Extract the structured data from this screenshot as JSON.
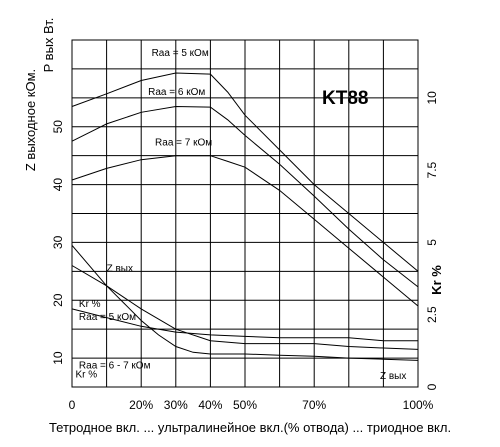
{
  "chart_data": {
    "type": "line",
    "model_label": "KT88",
    "left_axis_title_1": "Z выходное кОм.",
    "left_axis_title_2": "P вых Вт.",
    "right_axis_title": "Kr %",
    "x_axis_title": "Тетродное вкл. ... ультралинейное вкл.(% отвода) ... триодное вкл.",
    "x_ticks": [
      {
        "value": 0,
        "label": "0"
      },
      {
        "value": 20,
        "label": "20%"
      },
      {
        "value": 30,
        "label": "30%"
      },
      {
        "value": 40,
        "label": "40%"
      },
      {
        "value": 50,
        "label": "50%"
      },
      {
        "value": 70,
        "label": "70%"
      },
      {
        "value": 100,
        "label": "100%"
      }
    ],
    "xlim": [
      0,
      100
    ],
    "ylim": [
      5,
      65
    ],
    "y_ticks": [
      10,
      20,
      30,
      40,
      50
    ],
    "y2lim": [
      0,
      12
    ],
    "y2_ticks": [
      {
        "value": 0,
        "label": "0"
      },
      {
        "value": 2.5,
        "label": "2.5"
      },
      {
        "value": 5,
        "label": "5"
      },
      {
        "value": 7.5,
        "label": "7.5"
      },
      {
        "value": 10,
        "label": "10"
      }
    ],
    "grid": true,
    "series": [
      {
        "name": "Raa = 5 кОм",
        "axis": "left",
        "points": [
          [
            0,
            53.5
          ],
          [
            10,
            55.7
          ],
          [
            20,
            58
          ],
          [
            30,
            59.3
          ],
          [
            40,
            59.1
          ],
          [
            45,
            56
          ],
          [
            50,
            52
          ],
          [
            60,
            46
          ],
          [
            70,
            40
          ],
          [
            80,
            35
          ],
          [
            90,
            30
          ],
          [
            100,
            25
          ]
        ]
      },
      {
        "name": "Raa = 6 кОм",
        "axis": "left",
        "points": [
          [
            0,
            47.5
          ],
          [
            10,
            50.5
          ],
          [
            20,
            52.5
          ],
          [
            30,
            53.5
          ],
          [
            40,
            53.4
          ],
          [
            45,
            51.2
          ],
          [
            50,
            48.5
          ],
          [
            60,
            43.5
          ],
          [
            70,
            38
          ],
          [
            80,
            32.3
          ],
          [
            90,
            27
          ],
          [
            100,
            22.3
          ]
        ]
      },
      {
        "name": "Raa = 7 кОм",
        "axis": "left",
        "points": [
          [
            0,
            40.8
          ],
          [
            10,
            42.8
          ],
          [
            20,
            44.3
          ],
          [
            30,
            45
          ],
          [
            40,
            45
          ],
          [
            45,
            44
          ],
          [
            50,
            43
          ],
          [
            60,
            39
          ],
          [
            70,
            34
          ],
          [
            80,
            29
          ],
          [
            90,
            24
          ],
          [
            100,
            19
          ]
        ]
      },
      {
        "name": "Z вых",
        "axis": "left",
        "points": [
          [
            0,
            29.5
          ],
          [
            5,
            26
          ],
          [
            10,
            22.5
          ],
          [
            15,
            19.5
          ],
          [
            20,
            16.5
          ],
          [
            25,
            14
          ],
          [
            30,
            12
          ],
          [
            35,
            11
          ],
          [
            40,
            10.7
          ],
          [
            50,
            10.7
          ],
          [
            60,
            10.5
          ],
          [
            70,
            10.3
          ],
          [
            80,
            10
          ],
          [
            90,
            9.8
          ],
          [
            100,
            9.6
          ]
        ]
      },
      {
        "name": "Kr % Raa = 5 кОм",
        "axis": "right",
        "points": [
          [
            0,
            4.2
          ],
          [
            10,
            3.5
          ],
          [
            20,
            2.7
          ],
          [
            30,
            2.0
          ],
          [
            40,
            1.6
          ],
          [
            50,
            1.5
          ],
          [
            60,
            1.5
          ],
          [
            70,
            1.5
          ],
          [
            80,
            1.4
          ],
          [
            90,
            1.35
          ],
          [
            100,
            1.3
          ]
        ]
      },
      {
        "name": "Kr % Raa = 6 - 7 кОм",
        "axis": "right",
        "points": [
          [
            0,
            2.7
          ],
          [
            10,
            2.4
          ],
          [
            20,
            2.1
          ],
          [
            30,
            1.9
          ],
          [
            40,
            1.8
          ],
          [
            50,
            1.75
          ],
          [
            60,
            1.7
          ],
          [
            70,
            1.7
          ],
          [
            80,
            1.7
          ],
          [
            90,
            1.6
          ],
          [
            100,
            1.6
          ]
        ]
      }
    ],
    "annotations": [
      {
        "text": "Raa = 5 кОм",
        "x": 23,
        "y": 62.2
      },
      {
        "text": "Raa = 6 кОм",
        "x": 22,
        "y": 55.5
      },
      {
        "text": "Raa = 7 кОм",
        "x": 24,
        "y": 46.8
      },
      {
        "text": "Z вых",
        "x": 10,
        "y": 25
      },
      {
        "text": "Kr %",
        "x": 2,
        "y": 18.8
      },
      {
        "text": "Raa = 5 кОм",
        "x": 2,
        "y": 16.6
      },
      {
        "text": "Raa = 6 - 7 кОм",
        "x": 2,
        "y": 8.2
      },
      {
        "text": "Kr %",
        "x": 1,
        "y": 6.6
      },
      {
        "text": "Z вых",
        "x": 89,
        "y": 6.4
      }
    ]
  }
}
